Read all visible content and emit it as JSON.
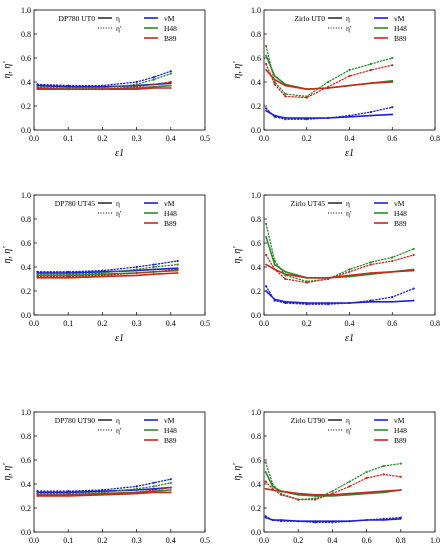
{
  "colors": {
    "vM": "#1f1fd6",
    "H48": "#2e8b2e",
    "B89": "#c8281e",
    "axis": "#000000",
    "scatter_pink": "#e8a0c8"
  },
  "legend_labels": {
    "eta": "η",
    "eta_prime": "η'",
    "vM": "vM",
    "H48": "H48",
    "B89": "B89"
  },
  "chart_data": [
    {
      "type": "line",
      "title": "DP780 UT0",
      "xlabel": "ε1",
      "ylabel": "η, η'",
      "xlim": [
        0,
        0.5
      ],
      "ylim": [
        0,
        1.0
      ],
      "xticks": [
        "0.0",
        "0.1",
        "0.2",
        "0.3",
        "0.4",
        "0.5"
      ],
      "yticks": [
        "0.0",
        "0.2",
        "0.4",
        "0.6",
        "0.8",
        "1.0"
      ],
      "legend_position": "top-right",
      "series": [
        {
          "name": "vM",
          "kind": "eta",
          "x": [
            0.01,
            0.1,
            0.2,
            0.3,
            0.35,
            0.4
          ],
          "values": [
            0.37,
            0.36,
            0.36,
            0.37,
            0.38,
            0.39
          ]
        },
        {
          "name": "H48",
          "kind": "eta",
          "x": [
            0.01,
            0.1,
            0.2,
            0.3,
            0.35,
            0.4
          ],
          "values": [
            0.35,
            0.34,
            0.34,
            0.35,
            0.36,
            0.37
          ]
        },
        {
          "name": "B89",
          "kind": "eta",
          "x": [
            0.01,
            0.1,
            0.2,
            0.3,
            0.35,
            0.4
          ],
          "values": [
            0.34,
            0.34,
            0.34,
            0.34,
            0.35,
            0.35
          ]
        },
        {
          "name": "vM",
          "kind": "eta_prime",
          "x": [
            0.01,
            0.1,
            0.2,
            0.3,
            0.35,
            0.4
          ],
          "values": [
            0.38,
            0.37,
            0.37,
            0.4,
            0.44,
            0.49
          ]
        },
        {
          "name": "H48",
          "kind": "eta_prime",
          "x": [
            0.01,
            0.1,
            0.2,
            0.3,
            0.35,
            0.4
          ],
          "values": [
            0.36,
            0.35,
            0.35,
            0.38,
            0.42,
            0.47
          ]
        },
        {
          "name": "B89",
          "kind": "eta_prime",
          "x": [
            0.01,
            0.1,
            0.2,
            0.3,
            0.35,
            0.4
          ],
          "values": [
            0.35,
            0.34,
            0.34,
            0.36,
            0.38,
            0.4
          ]
        }
      ]
    },
    {
      "type": "line",
      "title": "Zirlo UT0",
      "xlabel": "ε1",
      "ylabel": "η, η'",
      "xlim": [
        0,
        0.8
      ],
      "ylim": [
        0,
        1.0
      ],
      "xticks": [
        "0.0",
        "0.2",
        "0.4",
        "0.6",
        "0.8"
      ],
      "yticks": [
        "0.0",
        "0.2",
        "0.4",
        "0.6",
        "0.8",
        "1.0"
      ],
      "legend_position": "top-right",
      "series": [
        {
          "name": "vM",
          "kind": "eta",
          "x": [
            0.01,
            0.05,
            0.1,
            0.2,
            0.3,
            0.4,
            0.5,
            0.6
          ],
          "values": [
            0.16,
            0.12,
            0.1,
            0.1,
            0.1,
            0.11,
            0.12,
            0.13
          ]
        },
        {
          "name": "H48",
          "kind": "eta",
          "x": [
            0.01,
            0.05,
            0.1,
            0.2,
            0.3,
            0.4,
            0.5,
            0.6
          ],
          "values": [
            0.62,
            0.45,
            0.38,
            0.34,
            0.35,
            0.37,
            0.39,
            0.41
          ]
        },
        {
          "name": "B89",
          "kind": "eta",
          "x": [
            0.01,
            0.05,
            0.1,
            0.2,
            0.3,
            0.4,
            0.5,
            0.6
          ],
          "values": [
            0.5,
            0.42,
            0.37,
            0.34,
            0.35,
            0.37,
            0.39,
            0.4
          ]
        },
        {
          "name": "vM",
          "kind": "eta_prime",
          "x": [
            0.01,
            0.05,
            0.1,
            0.2,
            0.3,
            0.4,
            0.5,
            0.6
          ],
          "values": [
            0.18,
            0.11,
            0.09,
            0.09,
            0.1,
            0.12,
            0.15,
            0.19
          ]
        },
        {
          "name": "H48",
          "kind": "eta_prime",
          "x": [
            0.01,
            0.05,
            0.1,
            0.2,
            0.3,
            0.4,
            0.5,
            0.6
          ],
          "values": [
            0.7,
            0.4,
            0.3,
            0.28,
            0.4,
            0.5,
            0.55,
            0.6
          ]
        },
        {
          "name": "B89",
          "kind": "eta_prime",
          "x": [
            0.01,
            0.05,
            0.1,
            0.2,
            0.3,
            0.4,
            0.5,
            0.6
          ],
          "values": [
            0.55,
            0.38,
            0.28,
            0.27,
            0.36,
            0.45,
            0.5,
            0.54
          ]
        }
      ]
    },
    {
      "type": "line",
      "title": "DP780 UT45",
      "xlabel": "ε1",
      "ylabel": "η, η'",
      "xlim": [
        0,
        0.5
      ],
      "ylim": [
        0,
        1.0
      ],
      "xticks": [
        "0.0",
        "0.1",
        "0.2",
        "0.3",
        "0.4",
        "0.5"
      ],
      "yticks": [
        "0.0",
        "0.2",
        "0.4",
        "0.6",
        "0.8",
        "1.0"
      ],
      "legend_position": "top-right",
      "series": [
        {
          "name": "vM",
          "kind": "eta",
          "x": [
            0.01,
            0.1,
            0.2,
            0.3,
            0.35,
            0.42
          ],
          "values": [
            0.35,
            0.35,
            0.36,
            0.37,
            0.38,
            0.39
          ]
        },
        {
          "name": "H48",
          "kind": "eta",
          "x": [
            0.01,
            0.1,
            0.2,
            0.3,
            0.35,
            0.42
          ],
          "values": [
            0.33,
            0.33,
            0.34,
            0.35,
            0.36,
            0.37
          ]
        },
        {
          "name": "B89",
          "kind": "eta",
          "x": [
            0.01,
            0.1,
            0.2,
            0.3,
            0.35,
            0.42
          ],
          "values": [
            0.31,
            0.31,
            0.32,
            0.33,
            0.34,
            0.35
          ]
        },
        {
          "name": "vM",
          "kind": "eta_prime",
          "x": [
            0.01,
            0.1,
            0.2,
            0.3,
            0.35,
            0.42
          ],
          "values": [
            0.36,
            0.36,
            0.37,
            0.4,
            0.42,
            0.45
          ]
        },
        {
          "name": "H48",
          "kind": "eta_prime",
          "x": [
            0.01,
            0.1,
            0.2,
            0.3,
            0.35,
            0.42
          ],
          "values": [
            0.34,
            0.34,
            0.35,
            0.38,
            0.4,
            0.42
          ]
        },
        {
          "name": "B89",
          "kind": "eta_prime",
          "x": [
            0.01,
            0.1,
            0.2,
            0.3,
            0.35,
            0.42
          ],
          "values": [
            0.32,
            0.32,
            0.33,
            0.35,
            0.36,
            0.38
          ]
        }
      ]
    },
    {
      "type": "line",
      "title": "Zirlo UT45",
      "xlabel": "ε1",
      "ylabel": "η, η'",
      "xlim": [
        0,
        0.8
      ],
      "ylim": [
        0,
        1.0
      ],
      "xticks": [
        "0.0",
        "0.2",
        "0.4",
        "0.6",
        "0.8"
      ],
      "yticks": [
        "0.0",
        "0.2",
        "0.4",
        "0.6",
        "0.8",
        "1.0"
      ],
      "legend_position": "top-right",
      "series": [
        {
          "name": "vM",
          "kind": "eta",
          "x": [
            0.01,
            0.05,
            0.1,
            0.2,
            0.3,
            0.4,
            0.5,
            0.6,
            0.7
          ],
          "values": [
            0.2,
            0.13,
            0.11,
            0.1,
            0.1,
            0.1,
            0.11,
            0.11,
            0.12
          ]
        },
        {
          "name": "H48",
          "kind": "eta",
          "x": [
            0.01,
            0.05,
            0.1,
            0.2,
            0.3,
            0.4,
            0.5,
            0.6,
            0.7
          ],
          "values": [
            0.65,
            0.42,
            0.36,
            0.31,
            0.31,
            0.32,
            0.34,
            0.36,
            0.38
          ]
        },
        {
          "name": "B89",
          "kind": "eta",
          "x": [
            0.01,
            0.05,
            0.1,
            0.2,
            0.3,
            0.4,
            0.5,
            0.6,
            0.7
          ],
          "values": [
            0.42,
            0.38,
            0.34,
            0.31,
            0.31,
            0.33,
            0.35,
            0.36,
            0.37
          ]
        },
        {
          "name": "vM",
          "kind": "eta_prime",
          "x": [
            0.01,
            0.05,
            0.1,
            0.2,
            0.3,
            0.4,
            0.5,
            0.6,
            0.7
          ],
          "values": [
            0.24,
            0.12,
            0.1,
            0.09,
            0.09,
            0.1,
            0.12,
            0.15,
            0.22
          ]
        },
        {
          "name": "H48",
          "kind": "eta_prime",
          "x": [
            0.01,
            0.05,
            0.1,
            0.2,
            0.3,
            0.4,
            0.5,
            0.6,
            0.7
          ],
          "values": [
            0.76,
            0.45,
            0.33,
            0.28,
            0.3,
            0.38,
            0.44,
            0.48,
            0.55
          ]
        },
        {
          "name": "B89",
          "kind": "eta_prime",
          "x": [
            0.01,
            0.05,
            0.1,
            0.2,
            0.3,
            0.4,
            0.5,
            0.6,
            0.7
          ],
          "values": [
            0.5,
            0.38,
            0.3,
            0.27,
            0.3,
            0.36,
            0.42,
            0.45,
            0.5
          ]
        }
      ]
    },
    {
      "type": "line",
      "title": "DP780 UT90",
      "xlabel": "ε1",
      "ylabel": "η, η'",
      "xlim": [
        0,
        0.5
      ],
      "ylim": [
        0,
        1.0
      ],
      "xticks": [
        "0.0",
        "0.1",
        "0.2",
        "0.3",
        "0.4",
        "0.5"
      ],
      "yticks": [
        "0.0",
        "0.2",
        "0.4",
        "0.6",
        "0.8",
        "1.0"
      ],
      "legend_position": "top-right",
      "series": [
        {
          "name": "vM",
          "kind": "eta",
          "x": [
            0.01,
            0.1,
            0.2,
            0.3,
            0.35,
            0.4
          ],
          "values": [
            0.33,
            0.33,
            0.34,
            0.35,
            0.36,
            0.37
          ]
        },
        {
          "name": "H48",
          "kind": "eta",
          "x": [
            0.01,
            0.1,
            0.2,
            0.3,
            0.35,
            0.4
          ],
          "values": [
            0.31,
            0.31,
            0.32,
            0.33,
            0.34,
            0.35
          ]
        },
        {
          "name": "B89",
          "kind": "eta",
          "x": [
            0.01,
            0.1,
            0.2,
            0.3,
            0.35,
            0.4
          ],
          "values": [
            0.3,
            0.3,
            0.31,
            0.32,
            0.33,
            0.33
          ]
        },
        {
          "name": "vM",
          "kind": "eta_prime",
          "x": [
            0.01,
            0.1,
            0.2,
            0.3,
            0.35,
            0.4
          ],
          "values": [
            0.34,
            0.34,
            0.35,
            0.38,
            0.41,
            0.44
          ]
        },
        {
          "name": "H48",
          "kind": "eta_prime",
          "x": [
            0.01,
            0.1,
            0.2,
            0.3,
            0.35,
            0.4
          ],
          "values": [
            0.32,
            0.32,
            0.33,
            0.36,
            0.38,
            0.41
          ]
        },
        {
          "name": "B89",
          "kind": "eta_prime",
          "x": [
            0.01,
            0.1,
            0.2,
            0.3,
            0.35,
            0.4
          ],
          "values": [
            0.31,
            0.31,
            0.32,
            0.33,
            0.35,
            0.37
          ]
        }
      ]
    },
    {
      "type": "line",
      "title": "Zirlo UT90",
      "xlabel": "ε1",
      "ylabel": "η, η'",
      "xlim": [
        0,
        1.0
      ],
      "ylim": [
        0,
        1.0
      ],
      "xticks": [
        "0.0",
        "0.2",
        "0.4",
        "0.6",
        "0.8",
        "1.0"
      ],
      "yticks": [
        "0.0",
        "0.2",
        "0.4",
        "0.6",
        "0.8",
        "1.0"
      ],
      "legend_position": "top-right",
      "series": [
        {
          "name": "vM",
          "kind": "eta",
          "x": [
            0.01,
            0.05,
            0.1,
            0.2,
            0.3,
            0.4,
            0.5,
            0.6,
            0.7,
            0.8
          ],
          "values": [
            0.12,
            0.1,
            0.1,
            0.09,
            0.09,
            0.09,
            0.09,
            0.1,
            0.1,
            0.11
          ]
        },
        {
          "name": "H48",
          "kind": "eta",
          "x": [
            0.01,
            0.05,
            0.1,
            0.2,
            0.3,
            0.4,
            0.5,
            0.6,
            0.7,
            0.8
          ],
          "values": [
            0.5,
            0.38,
            0.34,
            0.31,
            0.3,
            0.3,
            0.31,
            0.32,
            0.33,
            0.35
          ]
        },
        {
          "name": "B89",
          "kind": "eta",
          "x": [
            0.01,
            0.05,
            0.1,
            0.2,
            0.3,
            0.4,
            0.5,
            0.6,
            0.7,
            0.8
          ],
          "values": [
            0.36,
            0.35,
            0.34,
            0.32,
            0.31,
            0.31,
            0.32,
            0.33,
            0.34,
            0.35
          ]
        },
        {
          "name": "vM",
          "kind": "eta_prime",
          "x": [
            0.01,
            0.05,
            0.1,
            0.2,
            0.3,
            0.4,
            0.5,
            0.6,
            0.7,
            0.8
          ],
          "values": [
            0.13,
            0.1,
            0.09,
            0.09,
            0.08,
            0.08,
            0.09,
            0.1,
            0.11,
            0.12
          ]
        },
        {
          "name": "H48",
          "kind": "eta_prime",
          "x": [
            0.01,
            0.05,
            0.1,
            0.2,
            0.3,
            0.4,
            0.5,
            0.6,
            0.7,
            0.8
          ],
          "values": [
            0.58,
            0.4,
            0.32,
            0.27,
            0.28,
            0.34,
            0.42,
            0.5,
            0.55,
            0.57
          ]
        },
        {
          "name": "B89",
          "kind": "eta_prime",
          "x": [
            0.01,
            0.05,
            0.1,
            0.2,
            0.3,
            0.4,
            0.5,
            0.6,
            0.7,
            0.8
          ],
          "values": [
            0.42,
            0.36,
            0.31,
            0.27,
            0.27,
            0.32,
            0.38,
            0.45,
            0.48,
            0.46
          ]
        }
      ]
    }
  ]
}
